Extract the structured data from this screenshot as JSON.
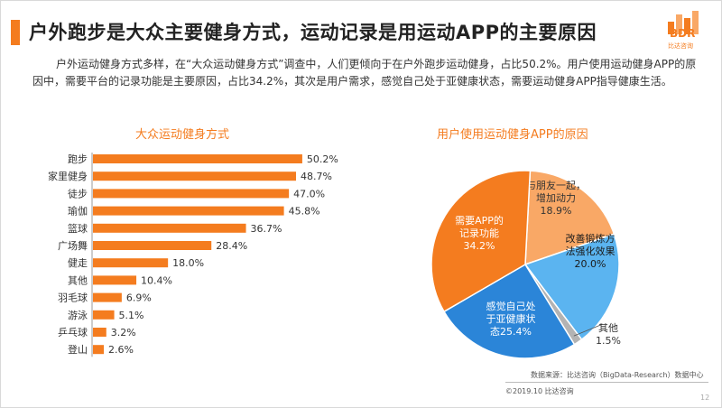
{
  "header": {
    "title": "户外跑步是大众主要健身方式，运动记录是用运动APP的主要原因",
    "logo_text": "BDR",
    "logo_sub": "比达咨询"
  },
  "intro": "户外运动健身方式多样，在“大众运动健身方式”调查中，人们更倾向于在户外跑步运动健身，占比50.2%。用户使用运动健身APP的原因中，需要平台的记录功能是主要原因，占比34.2%，其次是用户需求，感觉自己处于亚健康状态，需要运动健身APP指导健康生活。",
  "colors": {
    "accent": "#f47c1f",
    "bar": "#f47c1f"
  },
  "chart_data": [
    {
      "type": "bar",
      "orientation": "horizontal",
      "title": "大众运动健身方式",
      "categories": [
        "跑步",
        "家里健身",
        "徒步",
        "瑜伽",
        "篮球",
        "广场舞",
        "健走",
        "其他",
        "羽毛球",
        "游泳",
        "乒乓球",
        "登山"
      ],
      "values": [
        50.2,
        48.7,
        47.0,
        45.8,
        36.7,
        28.4,
        18.0,
        10.4,
        6.9,
        5.1,
        3.2,
        2.6
      ],
      "value_labels": [
        "50.2%",
        "48.7%",
        "47.0%",
        "45.8%",
        "36.7%",
        "28.4%",
        "18.0%",
        "10.4%",
        "6.9%",
        "5.1%",
        "3.2%",
        "2.6%"
      ],
      "unit": "%"
    },
    {
      "type": "pie",
      "title": "用户使用运动健身APP的原因",
      "slices": [
        {
          "label": "与朋友一起，增加动力",
          "value": 18.9,
          "lines": [
            "与朋友一起，",
            "增加动力",
            "18.9%"
          ],
          "color": "#f9a866"
        },
        {
          "label": "改善锻炼方法强化效果",
          "value": 20.0,
          "lines": [
            "改善锻炼方",
            "法强化效果",
            "20.0%"
          ],
          "color": "#5bb4f0"
        },
        {
          "label": "其他",
          "value": 1.5,
          "lines": [
            "其他",
            "1.5%"
          ],
          "color": "#b3b3b3"
        },
        {
          "label": "感觉自己处于亚健康状态",
          "value": 25.4,
          "lines": [
            "感觉自己处",
            "于亚健康状",
            "态25.4%"
          ],
          "color": "#2b85d8"
        },
        {
          "label": "需要APP的记录功能",
          "value": 34.2,
          "lines": [
            "需要APP的",
            "记录功能",
            "34.2%"
          ],
          "color": "#f47c1f"
        }
      ]
    }
  ],
  "footer": {
    "source": "数据来源：比达咨询（BigData-Research）数据中心",
    "copyright": "©2019.10  比达咨询",
    "page": "12"
  }
}
